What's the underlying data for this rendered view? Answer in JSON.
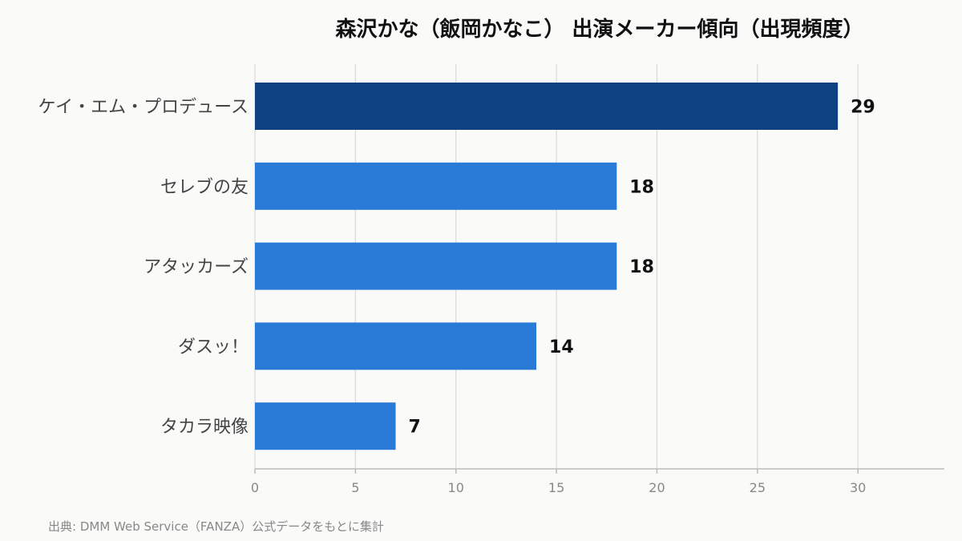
{
  "source_note": "出典: DMM Web Service（FANZA）公式データをもとに集計",
  "chart_data": {
    "type": "bar",
    "orientation": "horizontal",
    "title": "森沢かな（飯岡かなこ） 出演メーカー傾向（出現頻度）",
    "xlabel": "",
    "ylabel": "",
    "categories": [
      "ケイ・エム・プロデュース",
      "セレブの友",
      "アタッカーズ",
      "ダスッ！",
      "タカラ映像"
    ],
    "values": [
      29,
      18,
      18,
      14,
      7
    ],
    "xlim": [
      0,
      34.3
    ],
    "xticks": [
      0,
      5,
      10,
      15,
      20,
      25,
      30
    ],
    "grid": true,
    "colors": {
      "highlight": "#0f4282",
      "bar": "#2979d6",
      "grid": "#d9d9d9",
      "axis": "#bbbbbb"
    }
  }
}
